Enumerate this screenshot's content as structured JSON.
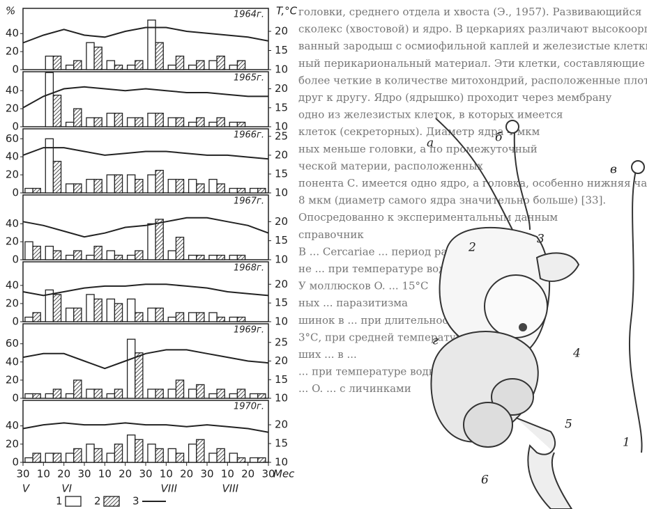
{
  "axes": {
    "y_label": "%",
    "y2_label": "T,°C",
    "x_unit": "Мес",
    "xlim": [
      0,
      12
    ],
    "xticks": [
      {
        "value": 0,
        "label": "30"
      },
      {
        "value": 1,
        "label": "10"
      },
      {
        "value": 2,
        "label": "20"
      },
      {
        "value": 3,
        "label": "30"
      },
      {
        "value": 4,
        "label": "10"
      },
      {
        "value": 5,
        "label": "20"
      },
      {
        "value": 6,
        "label": "30"
      },
      {
        "value": 7,
        "label": "10"
      },
      {
        "value": 8,
        "label": "20"
      },
      {
        "value": 9,
        "label": "30"
      },
      {
        "value": 10,
        "label": "10"
      },
      {
        "value": 11,
        "label": "20"
      },
      {
        "value": 12,
        "label": "30"
      }
    ],
    "months": [
      {
        "value": 0,
        "label": "V"
      },
      {
        "value": 2,
        "label": "VI"
      },
      {
        "value": 7,
        "label": "VIII"
      },
      {
        "value": 10,
        "label": "VIII"
      }
    ]
  },
  "chart_data": [
    {
      "type": "bar",
      "label": "1964г.",
      "ylim": [
        0,
        68
      ],
      "yticks": [
        0,
        20,
        40
      ],
      "y2lim": [
        10,
        26
      ],
      "y2ticks": [
        10,
        15,
        20
      ],
      "series": [
        {
          "name": "1",
          "color": "#ffffff",
          "values": [
            0,
            15,
            5,
            30,
            10,
            5,
            55,
            5,
            5,
            10,
            5,
            0
          ]
        },
        {
          "name": "2",
          "color": "hatch",
          "values": [
            0,
            15,
            10,
            25,
            5,
            10,
            30,
            15,
            10,
            15,
            10,
            0
          ]
        },
        {
          "name": "3",
          "type": "line",
          "axis": "y2",
          "color": "#222222",
          "x": [
            0,
            1,
            2,
            3,
            4,
            5,
            6,
            7,
            8,
            9,
            10,
            11,
            12
          ],
          "values": [
            17,
            19,
            20.5,
            19,
            18.5,
            20,
            21,
            21,
            20,
            19.5,
            19,
            18.5,
            17.5
          ]
        }
      ]
    },
    {
      "type": "bar",
      "label": "1965г.",
      "ylim": [
        0,
        61
      ],
      "yticks": [
        0,
        20,
        40
      ],
      "y2lim": [
        10,
        24.5
      ],
      "y2ticks": [
        10,
        15,
        20
      ],
      "series": [
        {
          "name": "1",
          "color": "#ffffff",
          "values": [
            0,
            60,
            5,
            10,
            15,
            10,
            15,
            10,
            5,
            5,
            5,
            0
          ]
        },
        {
          "name": "2",
          "color": "hatch",
          "values": [
            0,
            35,
            20,
            10,
            15,
            10,
            15,
            10,
            10,
            10,
            5,
            0
          ]
        },
        {
          "name": "3",
          "type": "line",
          "axis": "y2",
          "color": "#222222",
          "x": [
            0,
            1,
            2,
            3,
            4,
            5,
            6,
            7,
            8,
            9,
            10,
            11,
            12
          ],
          "values": [
            15,
            18,
            20,
            20.5,
            20,
            19.5,
            20,
            19.5,
            19,
            19,
            18.5,
            18,
            18
          ]
        }
      ]
    },
    {
      "type": "bar",
      "label": "1966г.",
      "ylim": [
        0,
        71
      ],
      "yticks": [
        0,
        20,
        40,
        60
      ],
      "y2lim": [
        10,
        27
      ],
      "y2ticks": [
        10,
        15,
        20,
        25
      ],
      "series": [
        {
          "name": "1",
          "color": "#ffffff",
          "values": [
            5,
            60,
            10,
            15,
            20,
            20,
            20,
            15,
            15,
            15,
            5,
            5
          ]
        },
        {
          "name": "2",
          "color": "hatch",
          "values": [
            5,
            35,
            10,
            15,
            20,
            15,
            25,
            15,
            10,
            10,
            5,
            5
          ]
        },
        {
          "name": "3",
          "type": "line",
          "axis": "y2",
          "color": "#222222",
          "x": [
            0,
            1,
            2,
            3,
            4,
            5,
            6,
            7,
            8,
            9,
            10,
            11,
            12
          ],
          "values": [
            20,
            22,
            22,
            21,
            20,
            20.5,
            21,
            21,
            20.5,
            20,
            20,
            19.5,
            19
          ]
        }
      ]
    },
    {
      "type": "bar",
      "label": "1967г.",
      "ylim": [
        0,
        72
      ],
      "yticks": [
        0,
        20,
        40
      ],
      "y2lim": [
        10,
        27
      ],
      "y2ticks": [
        10,
        15,
        20
      ],
      "series": [
        {
          "name": "1",
          "color": "#ffffff",
          "values": [
            20,
            15,
            5,
            5,
            10,
            5,
            40,
            10,
            5,
            5,
            5,
            0
          ]
        },
        {
          "name": "2",
          "color": "hatch",
          "values": [
            15,
            10,
            10,
            15,
            5,
            10,
            45,
            25,
            5,
            5,
            5,
            0
          ]
        },
        {
          "name": "3",
          "type": "line",
          "axis": "y2",
          "color": "#222222",
          "x": [
            0,
            1,
            2,
            3,
            4,
            5,
            6,
            7,
            8,
            9,
            10,
            11,
            12
          ],
          "values": [
            20,
            19,
            17.5,
            16,
            17,
            18.5,
            19,
            20,
            21,
            21,
            20,
            19,
            17
          ]
        }
      ]
    },
    {
      "type": "bar",
      "label": "1968г.",
      "ylim": [
        0,
        66
      ],
      "yticks": [
        0,
        20,
        40
      ],
      "y2lim": [
        10,
        26
      ],
      "y2ticks": [
        10,
        15,
        20
      ],
      "series": [
        {
          "name": "1",
          "color": "#ffffff",
          "values": [
            5,
            35,
            15,
            30,
            25,
            25,
            15,
            5,
            10,
            10,
            5,
            0
          ]
        },
        {
          "name": "2",
          "color": "hatch",
          "values": [
            10,
            30,
            15,
            25,
            20,
            10,
            15,
            10,
            10,
            5,
            5,
            0
          ]
        },
        {
          "name": "3",
          "type": "line",
          "axis": "y2",
          "color": "#222222",
          "x": [
            0,
            1,
            2,
            3,
            4,
            5,
            6,
            7,
            8,
            9,
            10,
            11,
            12
          ],
          "values": [
            18,
            17,
            18,
            19,
            19.5,
            19.5,
            20,
            20,
            19.5,
            19,
            18,
            17.5,
            17
          ]
        }
      ]
    },
    {
      "type": "bar",
      "label": "1969г.",
      "ylim": [
        0,
        82
      ],
      "yticks": [
        0,
        20,
        40,
        60
      ],
      "y2lim": [
        10,
        30
      ],
      "y2ticks": [
        10,
        15,
        20,
        25
      ],
      "series": [
        {
          "name": "1",
          "color": "#ffffff",
          "values": [
            5,
            5,
            5,
            10,
            5,
            65,
            10,
            10,
            10,
            5,
            5,
            5
          ]
        },
        {
          "name": "2",
          "color": "hatch",
          "values": [
            5,
            10,
            20,
            10,
            10,
            50,
            10,
            20,
            15,
            10,
            10,
            5
          ]
        },
        {
          "name": "3",
          "type": "line",
          "axis": "y2",
          "color": "#222222",
          "x": [
            0,
            1,
            2,
            3,
            4,
            5,
            6,
            7,
            8,
            9,
            10,
            11,
            12
          ],
          "values": [
            21,
            22,
            22,
            20,
            18,
            20,
            22,
            23,
            23,
            22,
            21,
            20,
            19.5
          ]
        }
      ]
    },
    {
      "type": "bar",
      "label": "1970г.",
      "ylim": [
        0,
        68
      ],
      "yticks": [
        0,
        20,
        40
      ],
      "y2lim": [
        10,
        26.5
      ],
      "y2ticks": [
        10,
        15,
        20
      ],
      "series": [
        {
          "name": "1",
          "color": "#ffffff",
          "values": [
            5,
            10,
            10,
            20,
            10,
            30,
            20,
            15,
            20,
            10,
            10,
            5
          ]
        },
        {
          "name": "2",
          "color": "hatch",
          "values": [
            10,
            10,
            15,
            15,
            20,
            25,
            15,
            10,
            25,
            15,
            5,
            5
          ]
        },
        {
          "name": "3",
          "type": "line",
          "axis": "y2",
          "color": "#222222",
          "x": [
            0,
            1,
            2,
            3,
            4,
            5,
            6,
            7,
            8,
            9,
            10,
            11,
            12
          ],
          "values": [
            19,
            20,
            20.5,
            20,
            20,
            20.5,
            20,
            20,
            19.5,
            20,
            19.5,
            19,
            18
          ]
        }
      ]
    }
  ],
  "document": {
    "text_lines": [
      "головки, среднего отдела и хвоста (Э., 1957). Развивающийся",
      "сколекс (хвостовой) и ядро. В церкариях различают высокоорганизо-",
      "ванный зародыш с осмиофильной каплей и железистые клетки",
      "ный перикариональный материал. Эти клетки, составляющие",
      "более четкие в количестве митохондрий, расположенные плотно",
      "друг к другу. Ядро (ядрышко) проходит через мембрану",
      "одно из железистых клеток, в которых имеется",
      "клеток (секреторных). Диаметр ядра 4 мкм",
      "ных меньше головки, а по промежуточный",
      "ческой материи, расположенных",
      "понента С. имеется одно ядро, а головка, особенно нижняя часть",
      "8 мкм (диаметр самого ядра значительно больше) [33].",
      "Опосредованно к экспериментальным данным",
      "справочник",
      "В ... Cercariae ... период развития",
      "не ... при температуре воды",
      "У моллюсков O. ... 15°С",
      "ных ... паразитизма",
      "шинок в ... при длительности до",
      "3°С, при средней температуре",
      "ших ... в ...",
      "... при температуре воды",
      "... O. ... с личинками"
    ],
    "figure_labels": [
      "а",
      "б",
      "в",
      "1",
      "2",
      "3",
      "4",
      "5",
      "6",
      "г"
    ]
  }
}
